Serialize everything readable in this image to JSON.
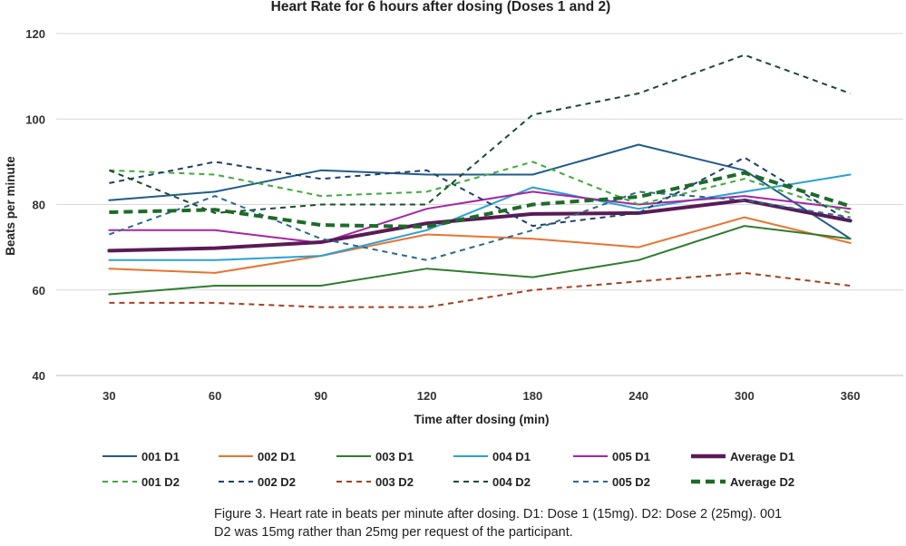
{
  "chart_data": {
    "type": "line",
    "title": "Heart Rate for 6 hours after dosing (Doses 1 and 2)",
    "xlabel": "Time after dosing (min)",
    "ylabel": "Beats per minute",
    "categories": [
      "30",
      "60",
      "90",
      "120",
      "180",
      "240",
      "300",
      "360"
    ],
    "ylim": [
      40,
      120
    ],
    "yticks": [
      40,
      60,
      80,
      100,
      120
    ],
    "grid": true,
    "legend_position": "bottom",
    "series": [
      {
        "name": "001 D1",
        "color": "#1f5c8a",
        "style": "solid",
        "weight": "normal",
        "values": [
          81,
          83,
          88,
          87,
          87,
          94,
          88,
          72
        ]
      },
      {
        "name": "002 D1",
        "color": "#e8742f",
        "style": "solid",
        "weight": "normal",
        "values": [
          65,
          64,
          68,
          73,
          72,
          70,
          77,
          71
        ]
      },
      {
        "name": "003 D1",
        "color": "#2e7d2e",
        "style": "solid",
        "weight": "normal",
        "values": [
          59,
          61,
          61,
          65,
          63,
          67,
          75,
          72
        ]
      },
      {
        "name": "004 D1",
        "color": "#2aa0d4",
        "style": "solid",
        "weight": "normal",
        "values": [
          67,
          67,
          68,
          74,
          84,
          79,
          83,
          87
        ]
      },
      {
        "name": "005 D1",
        "color": "#a626a4",
        "style": "solid",
        "weight": "normal",
        "values": [
          74,
          74,
          71,
          79,
          83,
          80,
          82,
          79
        ]
      },
      {
        "name": "Average D1",
        "color": "#5a1a57",
        "style": "solid",
        "weight": "bold",
        "values": [
          69.2,
          69.8,
          71.2,
          75.6,
          77.8,
          78.0,
          81.0,
          76.2
        ]
      },
      {
        "name": "001 D2",
        "color": "#3fab3a",
        "style": "dashed",
        "weight": "normal",
        "values": [
          88,
          87,
          82,
          83,
          90,
          80,
          86,
          78
        ]
      },
      {
        "name": "002 D2",
        "color": "#1f3f6e",
        "style": "dashed",
        "weight": "normal",
        "values": [
          85,
          90,
          86,
          88,
          75,
          78,
          91,
          76
        ]
      },
      {
        "name": "003 D2",
        "color": "#a5401e",
        "style": "dashed",
        "weight": "normal",
        "values": [
          57,
          57,
          56,
          56,
          60,
          62,
          64,
          61
        ]
      },
      {
        "name": "004 D2",
        "color": "#1a4d2e",
        "style": "dashed",
        "weight": "normal",
        "values": [
          88,
          78,
          80,
          80,
          101,
          106,
          115,
          106
        ]
      },
      {
        "name": "005 D2",
        "color": "#2b6a8c",
        "style": "dashed",
        "weight": "normal",
        "values": [
          73,
          82,
          72,
          67,
          74,
          83,
          81,
          77
        ]
      },
      {
        "name": "Average D2",
        "color": "#1d6b28",
        "style": "dashed",
        "weight": "bold",
        "values": [
          78.2,
          78.8,
          75.2,
          74.8,
          80.0,
          81.8,
          87.4,
          79.6
        ]
      }
    ]
  },
  "caption": {
    "line1": "Figure 3. Heart rate in beats per minute after dosing. D1: Dose 1 (15mg). D2: Dose 2 (25mg). 001",
    "line2": "D2 was 15mg rather than 25mg per request of the participant."
  }
}
